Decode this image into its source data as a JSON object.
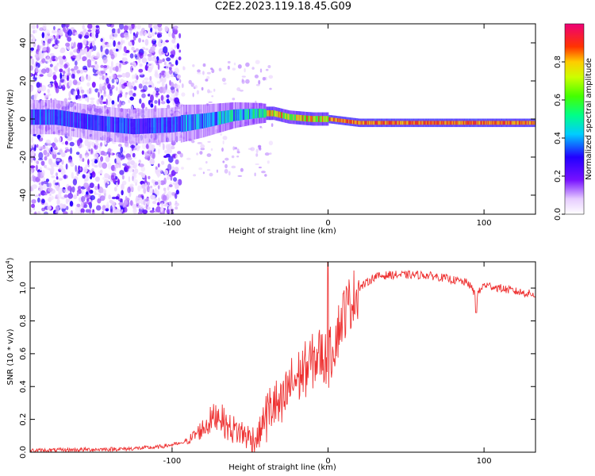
{
  "title": "C2E2.2023.119.18.45.G09",
  "chart_data": [
    {
      "type": "heatmap",
      "xlabel": "Height of straight line (km)",
      "ylabel": "Frequency (Hz)",
      "xlim": [
        -191,
        133
      ],
      "ylim": [
        -50,
        50
      ],
      "xticks": [
        -100,
        0,
        100
      ],
      "yticks": [
        -40,
        -20,
        0,
        20,
        40
      ],
      "colorbar": {
        "label": "Normalized spectral amplitude",
        "range": [
          0,
          1
        ],
        "ticks": [
          0.0,
          0.2,
          0.4,
          0.6,
          0.8
        ]
      },
      "ridge": {
        "x": [
          -175,
          -150,
          -125,
          -100,
          -80,
          -60,
          -45,
          -35,
          -25,
          -10,
          0,
          20,
          50,
          80,
          100,
          133
        ],
        "y": [
          1,
          -2,
          -4,
          -3,
          -1,
          2,
          3,
          3,
          1,
          0,
          0,
          -2,
          -2,
          -2,
          -2,
          -2
        ]
      },
      "noise_region_x": [
        -191,
        -95
      ],
      "grid": false
    },
    {
      "type": "line",
      "xlabel": "Height of straight line (km)",
      "ylabel": "SNR (10 * v/v)",
      "y_multiplier": "(x10",
      "y_multiplier_exp": "4",
      "y_multiplier_close": ")",
      "xlim": [
        -191,
        133
      ],
      "ylim": [
        0,
        1.16
      ],
      "xticks": [
        -100,
        0,
        100
      ],
      "yticks": [
        0.0,
        0.2,
        0.4,
        0.6,
        0.8,
        1.0
      ],
      "series": [
        {
          "color": "#ee3333",
          "x": [
            -191,
            -160,
            -130,
            -110,
            -90,
            -80,
            -70,
            -65,
            -60,
            -55,
            -50,
            -45,
            -40,
            -35,
            -30,
            -25,
            -20,
            -15,
            -10,
            -5,
            0,
            5,
            10,
            20,
            30,
            40,
            50,
            60,
            70,
            80,
            90,
            95,
            100,
            110,
            120,
            133
          ],
          "y": [
            0.01,
            0.015,
            0.02,
            0.03,
            0.06,
            0.12,
            0.2,
            0.12,
            0.1,
            0.08,
            0.05,
            0.05,
            0.2,
            0.3,
            0.25,
            0.4,
            0.45,
            0.5,
            0.55,
            0.6,
            0.55,
            0.7,
            0.85,
            1.0,
            1.07,
            1.08,
            1.08,
            1.08,
            1.07,
            1.05,
            1.03,
            0.95,
            1.02,
            1.0,
            0.98,
            0.96
          ]
        }
      ],
      "grid": false
    }
  ]
}
